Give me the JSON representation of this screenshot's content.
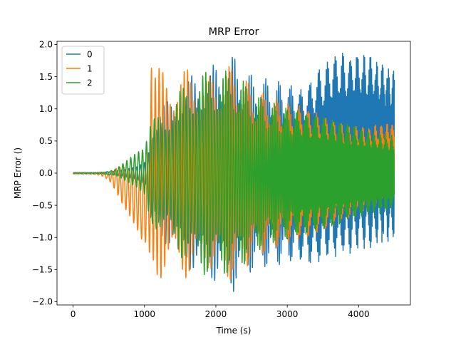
{
  "chart_data": {
    "type": "line",
    "title": "MRP Error",
    "xlabel": "Time (s)",
    "ylabel": "MRP Error ()",
    "xlim": [
      -225,
      4725
    ],
    "ylim": [
      -2.05,
      2.05
    ],
    "xticks": [
      0,
      1000,
      2000,
      3000,
      4000
    ],
    "xtick_labels": [
      "0",
      "1000",
      "2000",
      "3000",
      "4000"
    ],
    "yticks": [
      -2.0,
      -1.5,
      -1.0,
      -0.5,
      0.0,
      0.5,
      1.0,
      1.5,
      2.0
    ],
    "ytick_labels": [
      "−2.0",
      "−1.5",
      "−1.0",
      "−0.5",
      "0.0",
      "0.5",
      "1.0",
      "1.5",
      "2.0"
    ],
    "grid": false,
    "legend_position": "top-left",
    "series": [
      {
        "name": "0",
        "color": "#1f77b4",
        "envelope": [
          [
            0,
            0.01
          ],
          [
            300,
            0.01
          ],
          [
            500,
            0.02
          ],
          [
            700,
            0.05
          ],
          [
            900,
            0.1
          ],
          [
            1050,
            0.2
          ],
          [
            1100,
            0.9
          ],
          [
            1300,
            1.1
          ],
          [
            1500,
            1.4
          ],
          [
            1700,
            1.55
          ],
          [
            1900,
            1.65
          ],
          [
            2100,
            1.75
          ],
          [
            2250,
            1.85
          ],
          [
            2400,
            1.6
          ],
          [
            2600,
            1.5
          ],
          [
            2800,
            1.45
          ],
          [
            3000,
            1.4
          ],
          [
            3200,
            1.35
          ],
          [
            3400,
            1.5
          ],
          [
            3700,
            1.6
          ],
          [
            4000,
            1.55
          ],
          [
            4300,
            1.45
          ],
          [
            4500,
            1.35
          ]
        ],
        "baseline": [
          [
            0,
            0.0
          ],
          [
            1000,
            0.0
          ],
          [
            3300,
            0.0
          ],
          [
            3600,
            0.25
          ],
          [
            4000,
            0.35
          ],
          [
            4500,
            0.3
          ]
        ]
      },
      {
        "name": "1",
        "color": "#ff7f0e",
        "envelope": [
          [
            0,
            0.01
          ],
          [
            300,
            0.01
          ],
          [
            500,
            0.05
          ],
          [
            700,
            0.3
          ],
          [
            900,
            0.45
          ],
          [
            1050,
            0.65
          ],
          [
            1100,
            1.7
          ],
          [
            1300,
            1.6
          ],
          [
            1500,
            1.65
          ],
          [
            1700,
            1.6
          ],
          [
            1900,
            1.5
          ],
          [
            2100,
            1.65
          ],
          [
            2250,
            1.7
          ],
          [
            2400,
            1.5
          ],
          [
            2600,
            1.3
          ],
          [
            2800,
            1.2
          ],
          [
            3000,
            1.1
          ],
          [
            3200,
            1.05
          ],
          [
            3500,
            0.9
          ],
          [
            3800,
            0.75
          ],
          [
            4100,
            0.65
          ],
          [
            4500,
            0.6
          ]
        ],
        "baseline": [
          [
            0,
            0.0
          ],
          [
            400,
            -0.01
          ],
          [
            600,
            -0.1
          ],
          [
            800,
            -0.3
          ],
          [
            1000,
            -0.55
          ],
          [
            1100,
            0.0
          ],
          [
            3300,
            0.0
          ],
          [
            3700,
            0.0
          ],
          [
            4000,
            0.05
          ],
          [
            4500,
            0.2
          ]
        ]
      },
      {
        "name": "2",
        "color": "#2ca02c",
        "envelope": [
          [
            0,
            0.01
          ],
          [
            400,
            0.01
          ],
          [
            600,
            0.05
          ],
          [
            800,
            0.2
          ],
          [
            1000,
            0.35
          ],
          [
            1100,
            0.8
          ],
          [
            1300,
            1.05
          ],
          [
            1500,
            1.3
          ],
          [
            1700,
            1.55
          ],
          [
            1900,
            1.6
          ],
          [
            2100,
            1.6
          ],
          [
            2300,
            1.55
          ],
          [
            2500,
            1.3
          ],
          [
            2700,
            1.15
          ],
          [
            2900,
            1.05
          ],
          [
            3100,
            1.0
          ],
          [
            3300,
            0.95
          ],
          [
            3600,
            0.85
          ],
          [
            3900,
            0.75
          ],
          [
            4200,
            0.65
          ],
          [
            4500,
            0.6
          ]
        ],
        "baseline": [
          [
            0,
            0.0
          ],
          [
            500,
            0.0
          ],
          [
            900,
            0.05
          ],
          [
            1100,
            0.0
          ],
          [
            4500,
            0.0
          ]
        ]
      }
    ],
    "x_end": 4500
  }
}
